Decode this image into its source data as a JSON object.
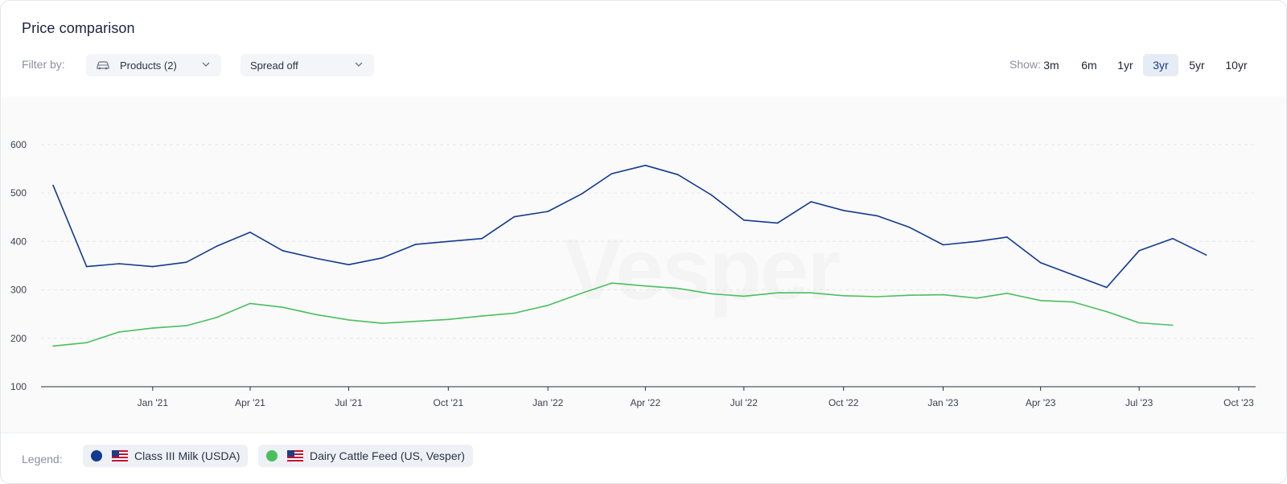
{
  "header": {
    "title": "Price comparison",
    "filter_label": "Filter by:",
    "products_filter": "Products (2)",
    "spread_filter": "Spread off",
    "show_label": "Show:",
    "ranges": [
      "3m",
      "6m",
      "1yr",
      "3yr",
      "5yr",
      "10yr"
    ],
    "active_range": "3yr"
  },
  "watermark": "Vesper",
  "legend": {
    "label": "Legend:",
    "items": [
      {
        "name": "Class III Milk (USDA)",
        "color": "#123a8f"
      },
      {
        "name": "Dairy Cattle Feed (US, Vesper)",
        "color": "#4bbf5f"
      }
    ]
  },
  "chart_data": {
    "type": "line",
    "ylim": [
      100,
      650
    ],
    "yticks": [
      100,
      200,
      300,
      400,
      500,
      600
    ],
    "xlim": [
      "2020-10-01",
      "2023-10-01"
    ],
    "xticks": [
      "Jan '21",
      "Apr '21",
      "Jul '21",
      "Oct '21",
      "Jan '22",
      "Apr '22",
      "Jul '22",
      "Oct '22",
      "Jan '23",
      "Apr '23",
      "Jul '23",
      "Oct '23"
    ],
    "xtick_dates": [
      "2021-01-01",
      "2021-04-01",
      "2021-07-01",
      "2021-10-01",
      "2022-01-01",
      "2022-04-01",
      "2022-07-01",
      "2022-10-01",
      "2023-01-01",
      "2023-04-01",
      "2023-07-01",
      "2023-10-01"
    ],
    "grid": true,
    "series": [
      {
        "name": "Class III Milk (USDA)",
        "color": "#123a8f",
        "points": [
          [
            "2020-10-01",
            516
          ],
          [
            "2020-11-01",
            348
          ],
          [
            "2020-12-01",
            354
          ],
          [
            "2021-01-01",
            348
          ],
          [
            "2021-02-01",
            357
          ],
          [
            "2021-03-01",
            390
          ],
          [
            "2021-04-01",
            419
          ],
          [
            "2021-05-01",
            381
          ],
          [
            "2021-06-01",
            365
          ],
          [
            "2021-07-01",
            352
          ],
          [
            "2021-08-01",
            366
          ],
          [
            "2021-09-01",
            394
          ],
          [
            "2021-10-01",
            400
          ],
          [
            "2021-11-01",
            406
          ],
          [
            "2021-12-01",
            451
          ],
          [
            "2022-01-01",
            462
          ],
          [
            "2022-02-01",
            498
          ],
          [
            "2022-03-01",
            540
          ],
          [
            "2022-04-01",
            557
          ],
          [
            "2022-05-01",
            538
          ],
          [
            "2022-06-01",
            496
          ],
          [
            "2022-07-01",
            444
          ],
          [
            "2022-08-01",
            438
          ],
          [
            "2022-09-01",
            482
          ],
          [
            "2022-10-01",
            464
          ],
          [
            "2022-11-01",
            453
          ],
          [
            "2022-12-01",
            429
          ],
          [
            "2023-01-01",
            393
          ],
          [
            "2023-02-01",
            400
          ],
          [
            "2023-03-01",
            409
          ],
          [
            "2023-04-01",
            356
          ],
          [
            "2023-05-01",
            331
          ],
          [
            "2023-06-01",
            305
          ],
          [
            "2023-07-01",
            381
          ],
          [
            "2023-08-01",
            406
          ],
          [
            "2023-09-01",
            372
          ]
        ]
      },
      {
        "name": "Dairy Cattle Feed (US, Vesper)",
        "color": "#4bbf5f",
        "points": [
          [
            "2020-10-01",
            184
          ],
          [
            "2020-11-01",
            191
          ],
          [
            "2020-12-01",
            213
          ],
          [
            "2021-01-01",
            221
          ],
          [
            "2021-02-01",
            226
          ],
          [
            "2021-03-01",
            243
          ],
          [
            "2021-04-01",
            272
          ],
          [
            "2021-05-01",
            264
          ],
          [
            "2021-06-01",
            249
          ],
          [
            "2021-07-01",
            238
          ],
          [
            "2021-08-01",
            231
          ],
          [
            "2021-09-01",
            235
          ],
          [
            "2021-10-01",
            239
          ],
          [
            "2021-11-01",
            246
          ],
          [
            "2021-12-01",
            252
          ],
          [
            "2022-01-01",
            268
          ],
          [
            "2022-02-01",
            293
          ],
          [
            "2022-03-01",
            314
          ],
          [
            "2022-04-01",
            308
          ],
          [
            "2022-05-01",
            303
          ],
          [
            "2022-06-01",
            292
          ],
          [
            "2022-07-01",
            287
          ],
          [
            "2022-08-01",
            294
          ],
          [
            "2022-09-01",
            294
          ],
          [
            "2022-10-01",
            288
          ],
          [
            "2022-11-01",
            286
          ],
          [
            "2022-12-01",
            289
          ],
          [
            "2023-01-01",
            290
          ],
          [
            "2023-02-01",
            283
          ],
          [
            "2023-03-01",
            293
          ],
          [
            "2023-04-01",
            278
          ],
          [
            "2023-05-01",
            275
          ],
          [
            "2023-06-01",
            255
          ],
          [
            "2023-07-01",
            232
          ],
          [
            "2023-08-01",
            227
          ]
        ]
      }
    ]
  }
}
